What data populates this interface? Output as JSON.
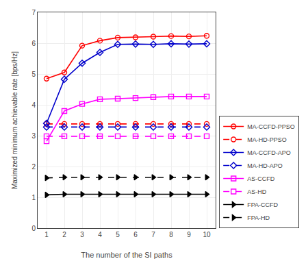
{
  "chart_data": {
    "type": "line",
    "xlabel": "The number of the SI paths",
    "ylabel": "Maximized minimum achievable rate [bps/Hz]",
    "x": [
      1,
      2,
      3,
      4,
      5,
      6,
      7,
      8,
      9,
      10
    ],
    "xlim": [
      0.5,
      10.5
    ],
    "xticks": [
      1,
      2,
      3,
      4,
      5,
      6,
      7,
      8,
      9,
      10
    ],
    "ylim": [
      0,
      7
    ],
    "yticks": [
      0,
      1,
      2,
      3,
      4,
      5,
      6,
      7
    ],
    "grid": true,
    "legend": "lower right",
    "series": [
      {
        "name": "MA-CCFD-PPSO",
        "color": "#ff0000",
        "line_style": "solid",
        "marker": "circle-open",
        "values": [
          4.85,
          5.05,
          5.92,
          6.08,
          6.18,
          6.19,
          6.21,
          6.23,
          6.22,
          6.24
        ]
      },
      {
        "name": "MA-HD-PPSO",
        "color": "#ff0000",
        "line_style": "dashed",
        "marker": "circle-open",
        "values": [
          3.38,
          3.38,
          3.38,
          3.38,
          3.38,
          3.38,
          3.38,
          3.38,
          3.38,
          3.38
        ]
      },
      {
        "name": "MA-CCFD-APO",
        "color": "#0000cc",
        "line_style": "solid",
        "marker": "diamond-open",
        "values": [
          3.4,
          4.83,
          5.35,
          5.7,
          5.96,
          5.97,
          5.96,
          5.98,
          5.97,
          5.98
        ]
      },
      {
        "name": "MA-HD-APO",
        "color": "#0000cc",
        "line_style": "dashed",
        "marker": "diamond-open",
        "values": [
          3.28,
          3.28,
          3.28,
          3.28,
          3.28,
          3.28,
          3.28,
          3.28,
          3.28,
          3.28
        ]
      },
      {
        "name": "AS-CCFD",
        "color": "#ff00ff",
        "line_style": "solid",
        "marker": "square-open",
        "values": [
          2.82,
          3.8,
          4.03,
          4.18,
          4.2,
          4.22,
          4.25,
          4.27,
          4.27,
          4.27
        ]
      },
      {
        "name": "AS-HD",
        "color": "#ff00ff",
        "line_style": "dashed",
        "marker": "square-open",
        "values": [
          2.98,
          2.98,
          2.98,
          2.98,
          2.98,
          2.98,
          2.98,
          2.98,
          2.98,
          2.98
        ]
      },
      {
        "name": "FPA-CCFD",
        "color": "#000000",
        "line_style": "solid",
        "marker": "triangle-right",
        "values": [
          1.08,
          1.1,
          1.1,
          1.1,
          1.1,
          1.1,
          1.1,
          1.1,
          1.1,
          1.1
        ]
      },
      {
        "name": "FPA-HD",
        "color": "#000000",
        "line_style": "dashed",
        "marker": "triangle-right",
        "values": [
          1.63,
          1.65,
          1.65,
          1.65,
          1.65,
          1.65,
          1.65,
          1.65,
          1.65,
          1.65
        ]
      }
    ]
  }
}
